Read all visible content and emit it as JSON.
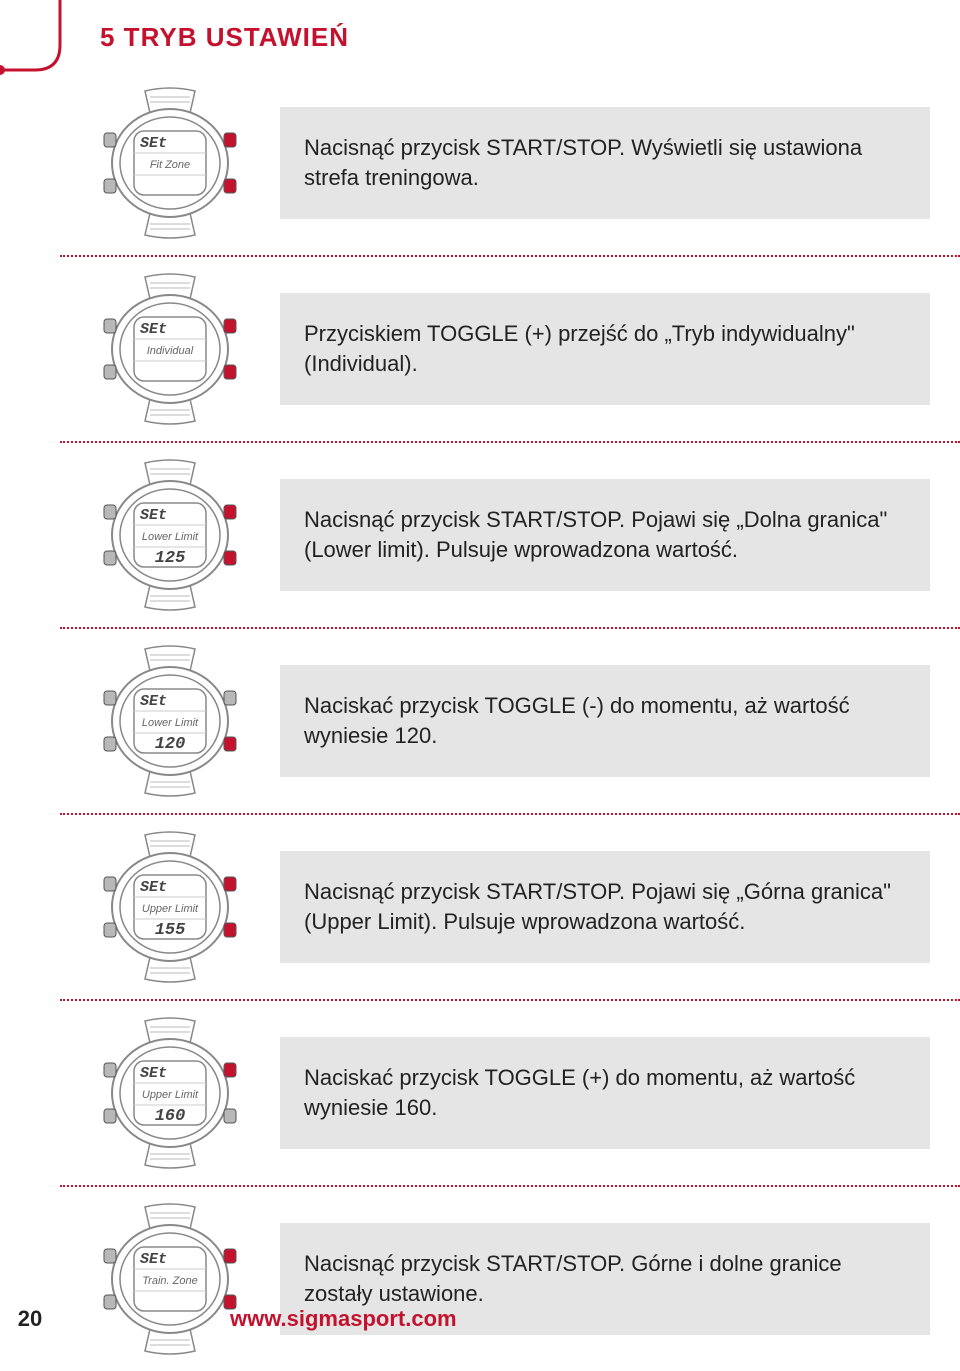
{
  "title": "5 TRYB USTAWIEŃ",
  "accent_color": "#c4122e",
  "text_bg": "#e5e5e5",
  "text_color": "#222222",
  "divider_color": "#c4122e",
  "footer": {
    "page": "20",
    "url": "www.sigmasport.com"
  },
  "rows": [
    {
      "screen_top": "SEt",
      "screen_mid": "Fit Zone",
      "screen_bot": "",
      "highlight": [
        "top-right",
        "bottom-right"
      ],
      "text": "Nacisnąć przycisk START/STOP. Wyświetli się ustawiona strefa treningowa."
    },
    {
      "screen_top": "SEt",
      "screen_mid": "Individual",
      "screen_bot": "",
      "highlight": [
        "top-right",
        "bottom-right"
      ],
      "text": "Przyciskiem TOGGLE (+) przejść do „Tryb indywidualny\" (Individual)."
    },
    {
      "screen_top": "SEt",
      "screen_mid": "Lower Limit",
      "screen_bot": "125",
      "highlight": [
        "top-right",
        "bottom-right"
      ],
      "text": "Nacisnąć przycisk START/STOP. Pojawi się „Dolna granica\" (Lower limit). Pulsuje wprowadzona wartość."
    },
    {
      "screen_top": "SEt",
      "screen_mid": "Lower Limit",
      "screen_bot": "120",
      "highlight": [
        "bottom-right"
      ],
      "text": "Naciskać przycisk TOGGLE (-) do momentu, aż wartość wyniesie 120."
    },
    {
      "screen_top": "SEt",
      "screen_mid": "Upper Limit",
      "screen_bot": "155",
      "highlight": [
        "top-right",
        "bottom-right"
      ],
      "text": "Nacisnąć przycisk START/STOP. Pojawi się „Górna granica\" (Upper Limit). Pulsuje wprowadzona wartość."
    },
    {
      "screen_top": "SEt",
      "screen_mid": "Upper Limit",
      "screen_bot": "160",
      "highlight": [
        "top-right"
      ],
      "text": "Naciskać przycisk TOGGLE (+) do momentu, aż wartość wyniesie 160."
    },
    {
      "screen_top": "SEt",
      "screen_mid": "Train. Zone",
      "screen_bot": "",
      "highlight": [
        "top-right",
        "bottom-right"
      ],
      "text": "Nacisnąć przycisk START/STOP. Górne i dolne granice zostały ustawione."
    }
  ]
}
